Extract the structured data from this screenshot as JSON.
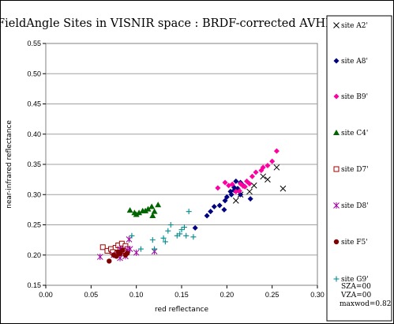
{
  "chart_data": {
    "type": "scatter",
    "title": "FieldAngle Sites in VISNIR space : BRDF-corrected AVHRR",
    "xlabel": "red reflectance",
    "ylabel": "near-infrared reflectance",
    "xlim": [
      0,
      0.3
    ],
    "ylim": [
      0.15,
      0.55
    ],
    "x_ticks": [
      "0.00",
      "0.05",
      "0.10",
      "0.15",
      "0.20",
      "0.25",
      "0.30"
    ],
    "y_ticks": [
      "0.15",
      "0.20",
      "0.25",
      "0.30",
      "0.35",
      "0.40",
      "0.45",
      "0.50",
      "0.55"
    ],
    "grid": "horizontal",
    "legend_position": "right",
    "legend_note": [
      "SZA=00",
      "VZA=00",
      "maxwod=0.82"
    ],
    "series": [
      {
        "name": "site A2'",
        "marker": "x",
        "color": "#000000",
        "points": [
          [
            0.255,
            0.345
          ],
          [
            0.262,
            0.31
          ],
          [
            0.245,
            0.325
          ],
          [
            0.24,
            0.33
          ],
          [
            0.23,
            0.315
          ],
          [
            0.225,
            0.305
          ],
          [
            0.215,
            0.3
          ],
          [
            0.21,
            0.29
          ]
        ]
      },
      {
        "name": "site A8'",
        "marker": "diamond",
        "color": "#000080",
        "points": [
          [
            0.165,
            0.245
          ],
          [
            0.178,
            0.265
          ],
          [
            0.182,
            0.272
          ],
          [
            0.186,
            0.28
          ],
          [
            0.192,
            0.282
          ],
          [
            0.198,
            0.29
          ],
          [
            0.2,
            0.296
          ],
          [
            0.205,
            0.3
          ],
          [
            0.208,
            0.307
          ],
          [
            0.212,
            0.31
          ],
          [
            0.218,
            0.315
          ],
          [
            0.208,
            0.312
          ],
          [
            0.204,
            0.305
          ],
          [
            0.215,
            0.32
          ],
          [
            0.21,
            0.322
          ],
          [
            0.226,
            0.293
          ],
          [
            0.197,
            0.275
          ],
          [
            0.215,
            0.3
          ]
        ]
      },
      {
        "name": "site B9'",
        "marker": "diamond",
        "color": "#ff00a0",
        "points": [
          [
            0.255,
            0.372
          ],
          [
            0.25,
            0.355
          ],
          [
            0.245,
            0.348
          ],
          [
            0.238,
            0.34
          ],
          [
            0.232,
            0.337
          ],
          [
            0.228,
            0.33
          ],
          [
            0.225,
            0.318
          ],
          [
            0.222,
            0.322
          ],
          [
            0.218,
            0.314
          ],
          [
            0.214,
            0.306
          ],
          [
            0.21,
            0.305
          ],
          [
            0.206,
            0.317
          ],
          [
            0.198,
            0.32
          ],
          [
            0.19,
            0.311
          ],
          [
            0.202,
            0.315
          ],
          [
            0.215,
            0.318
          ],
          [
            0.22,
            0.313
          ],
          [
            0.24,
            0.345
          ]
        ]
      },
      {
        "name": "site C4'",
        "marker": "triangle",
        "color": "#006400",
        "points": [
          [
            0.093,
            0.274
          ],
          [
            0.1,
            0.267
          ],
          [
            0.103,
            0.27
          ],
          [
            0.107,
            0.273
          ],
          [
            0.11,
            0.273
          ],
          [
            0.113,
            0.276
          ],
          [
            0.117,
            0.28
          ],
          [
            0.12,
            0.272
          ],
          [
            0.118,
            0.265
          ],
          [
            0.124,
            0.283
          ],
          [
            0.098,
            0.27
          ]
        ]
      },
      {
        "name": "site D7'",
        "marker": "square",
        "color": "#a00000",
        "points": [
          [
            0.063,
            0.213
          ],
          [
            0.068,
            0.207
          ],
          [
            0.072,
            0.21
          ],
          [
            0.077,
            0.212
          ],
          [
            0.08,
            0.216
          ],
          [
            0.084,
            0.219
          ],
          [
            0.088,
            0.215
          ],
          [
            0.09,
            0.21
          ],
          [
            0.086,
            0.207
          ],
          [
            0.074,
            0.205
          ],
          [
            0.079,
            0.203
          ]
        ]
      },
      {
        "name": "site D8'",
        "marker": "asterisk",
        "color": "#a000a0",
        "points": [
          [
            0.06,
            0.197
          ],
          [
            0.075,
            0.2
          ],
          [
            0.082,
            0.195
          ],
          [
            0.088,
            0.198
          ],
          [
            0.09,
            0.208
          ],
          [
            0.093,
            0.21
          ],
          [
            0.1,
            0.204
          ],
          [
            0.12,
            0.206
          ],
          [
            0.082,
            0.21
          ],
          [
            0.092,
            0.226
          ]
        ]
      },
      {
        "name": "site F5'",
        "marker": "circle",
        "color": "#800000",
        "points": [
          [
            0.07,
            0.19
          ],
          [
            0.075,
            0.2
          ],
          [
            0.078,
            0.198
          ],
          [
            0.08,
            0.205
          ],
          [
            0.082,
            0.202
          ],
          [
            0.085,
            0.208
          ],
          [
            0.088,
            0.2
          ],
          [
            0.09,
            0.203
          ]
        ]
      },
      {
        "name": "site G9'",
        "marker": "plus",
        "color": "#008b8b",
        "points": [
          [
            0.095,
            0.232
          ],
          [
            0.105,
            0.21
          ],
          [
            0.12,
            0.21
          ],
          [
            0.13,
            0.228
          ],
          [
            0.135,
            0.24
          ],
          [
            0.145,
            0.232
          ],
          [
            0.148,
            0.235
          ],
          [
            0.15,
            0.242
          ],
          [
            0.153,
            0.246
          ],
          [
            0.155,
            0.232
          ],
          [
            0.163,
            0.23
          ],
          [
            0.158,
            0.272
          ],
          [
            0.138,
            0.25
          ],
          [
            0.132,
            0.222
          ],
          [
            0.118,
            0.225
          ]
        ]
      }
    ]
  }
}
